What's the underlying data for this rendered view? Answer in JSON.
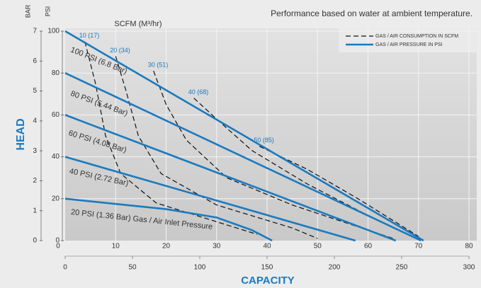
{
  "chart_data": {
    "type": "line",
    "note": "Performance based on water at ambient temperature.",
    "x_label": "CAPACITY",
    "y_label": "HEAD",
    "y_unit": "PSI",
    "y2_unit": "BAR",
    "x_top_label": "SCFM (M³/hr)",
    "legend": [
      "GAS / AIR CONSUMPTION IN SCFM",
      "GAS / AIR PRESSURE IN PSI"
    ],
    "xlim": [
      0,
      80
    ],
    "xticks": [
      0,
      10,
      20,
      30,
      40,
      50,
      60,
      70,
      80
    ],
    "x2lim": [
      0,
      300
    ],
    "x2ticks": [
      0,
      50,
      100,
      150,
      200,
      250,
      300
    ],
    "ylim": [
      0,
      100
    ],
    "yticks": [
      0,
      20,
      40,
      60,
      80,
      100
    ],
    "y2lim": [
      0,
      7
    ],
    "y2ticks": [
      0,
      1,
      2,
      3,
      4,
      5,
      6,
      7
    ],
    "grid": true,
    "pressure_series": [
      {
        "name": "100 PSI (6.8 Bar)",
        "color": "#1a7abf",
        "x": [
          0,
          71
        ],
        "values": [
          100,
          0
        ]
      },
      {
        "name": "80 PSI (5.44 Bar)",
        "color": "#1a7abf",
        "x": [
          0,
          70.5
        ],
        "values": [
          80,
          0
        ]
      },
      {
        "name": "60 PSI (4.08 Bar)",
        "color": "#1a7abf",
        "x": [
          0,
          65.5
        ],
        "values": [
          60,
          0
        ]
      },
      {
        "name": "40 PSI (2.72 Bar)",
        "color": "#1a7abf",
        "x": [
          0,
          57.5
        ],
        "values": [
          40,
          0
        ]
      },
      {
        "name": "20 PSI (1.36 Bar) Gas / Air Inlet Pressure",
        "color": "#1a7abf",
        "x": [
          0,
          20,
          30,
          37,
          41
        ],
        "values": [
          20,
          15,
          11,
          5,
          0
        ]
      }
    ],
    "air_series": [
      {
        "name": "10 (17)",
        "color": "#111111",
        "x": [
          3.9,
          6,
          8,
          11,
          18,
          30,
          38
        ],
        "values": [
          95,
          75,
          50,
          32,
          18,
          9,
          3
        ]
      },
      {
        "name": "20 (34)",
        "color": "#111111",
        "x": [
          10,
          12,
          14.5,
          19,
          30,
          45,
          50
        ],
        "values": [
          88,
          72,
          50,
          32,
          17,
          6,
          1
        ]
      },
      {
        "name": "30 (51)",
        "color": "#111111",
        "x": [
          17.5,
          20,
          24,
          32,
          45,
          60,
          65
        ],
        "values": [
          81,
          65,
          48,
          30,
          17,
          5,
          1
        ]
      },
      {
        "name": "40 (68)",
        "color": "#111111",
        "x": [
          25.5,
          30,
          37,
          48,
          60,
          68
        ],
        "values": [
          68,
          58,
          43,
          27,
          12,
          3
        ]
      },
      {
        "name": "50 (85)",
        "color": "#111111",
        "x": [
          38.5,
          48,
          58,
          66,
          70
        ],
        "values": [
          45,
          34,
          20,
          8,
          2
        ]
      }
    ]
  }
}
